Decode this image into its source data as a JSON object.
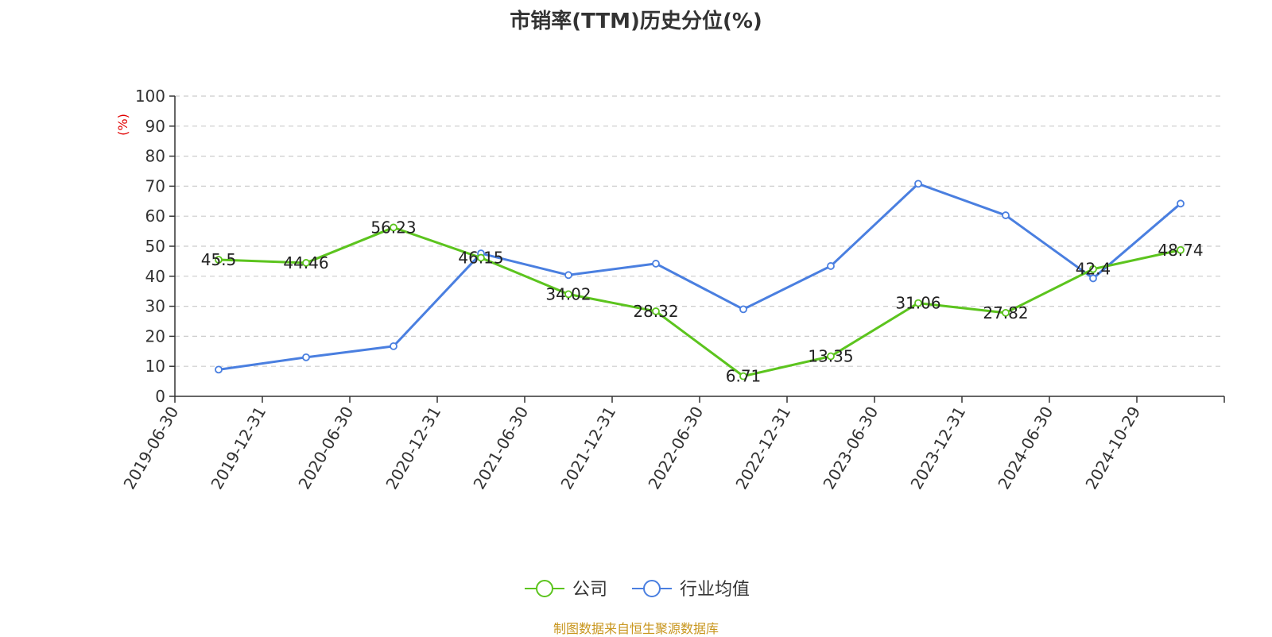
{
  "chart_data": {
    "type": "line",
    "title": "市销率(TTM)历史分位(%)",
    "ylabel": "(%)",
    "xlabel": "",
    "ylim": [
      0,
      100
    ],
    "yticks": [
      0,
      10,
      20,
      30,
      40,
      50,
      60,
      70,
      80,
      90,
      100
    ],
    "grid": true,
    "legend_position": "bottom-center",
    "categories": [
      "2019-06-30",
      "2019-12-31",
      "2020-06-30",
      "2020-12-31",
      "2021-06-30",
      "2021-12-31",
      "2022-06-30",
      "2022-12-31",
      "2023-06-30",
      "2023-12-31",
      "2024-06-30",
      "2024-10-29"
    ],
    "series": [
      {
        "name": "公司",
        "color": "#5cc41e",
        "values": [
          45.5,
          44.46,
          56.23,
          46.15,
          34.02,
          28.32,
          6.71,
          13.35,
          31.06,
          27.82,
          42.4,
          48.74
        ],
        "labels": [
          "45.5",
          "44.46",
          "56.23",
          "46.15",
          "34.02",
          "28.32",
          "6.71",
          "13.35",
          "31.06",
          "27.82",
          "42.4",
          "48.74"
        ]
      },
      {
        "name": "行业均值",
        "color": "#4a7fe0",
        "values": [
          8.9,
          13.0,
          16.7,
          47.6,
          40.4,
          44.2,
          29.0,
          43.4,
          70.8,
          60.3,
          39.3,
          64.2
        ]
      }
    ],
    "source": "制图数据来自恒生聚源数据库"
  }
}
